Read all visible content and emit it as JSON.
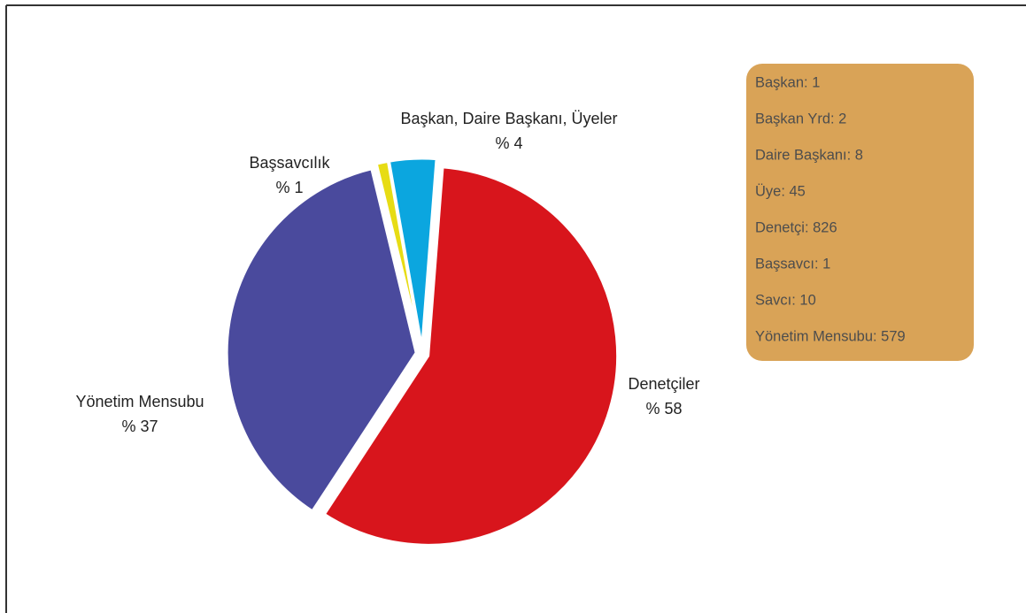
{
  "chart_data": {
    "type": "pie",
    "categories": [
      "Başkan, Daire Başkanı, Üyeler",
      "Denetçiler",
      "Yönetim Mensubu",
      "Başsavcılık"
    ],
    "values": [
      4,
      58,
      37,
      1
    ],
    "value_labels": [
      "% 4",
      "% 58",
      "% 37",
      "% 1"
    ],
    "colors": [
      "#0ba6df",
      "#d8151c",
      "#4a4a9d",
      "#e7dc14"
    ],
    "info_box": [
      "Başkan: 1",
      "Başkan Yrd: 2",
      "Daire Başkanı: 8",
      "Üye: 45",
      "Denetçi: 826",
      "Başsavcı: 1",
      "Savcı: 10",
      "Yönetim Mensubu: 579"
    ],
    "info_box_color": "#d9a357"
  }
}
